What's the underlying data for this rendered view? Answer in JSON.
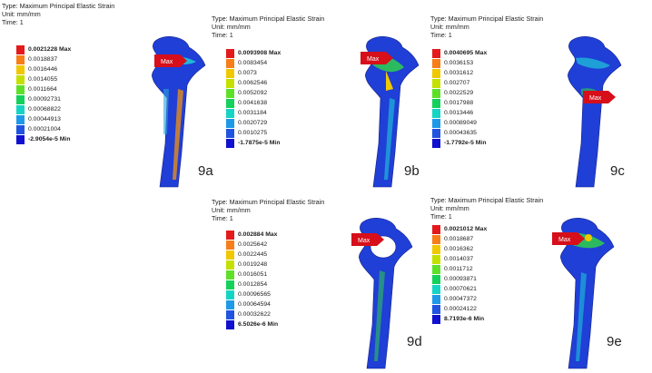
{
  "header": {
    "title": "Type: Maximum Principal Elastic Strain",
    "unit": "Unit: mm/mm",
    "time": "Time: 1"
  },
  "legend_colors": [
    "#e31a1c",
    "#f77e19",
    "#f0c800",
    "#c5e000",
    "#5ee028",
    "#13d15a",
    "#16d4c4",
    "#1e99e8",
    "#2054e0",
    "#1010d0"
  ],
  "panels": [
    {
      "id": "9a",
      "label": "9a",
      "max_tag": "Max",
      "values": [
        "0.0021228 Max",
        "0.0018837",
        "0.0016446",
        "0.0014055",
        "0.0011664",
        "0.00092731",
        "0.00068822",
        "0.00044913",
        "0.00021004",
        "-2.9054e-5 Min"
      ]
    },
    {
      "id": "9b",
      "label": "9b",
      "max_tag": "Max",
      "values": [
        "0.0093908 Max",
        "0.0083454",
        "0.0073",
        "0.0062546",
        "0.0052092",
        "0.0041638",
        "0.0031184",
        "0.0020729",
        "0.0010275",
        "-1.7875e-5 Min"
      ]
    },
    {
      "id": "9c",
      "label": "9c",
      "max_tag": "Max",
      "values": [
        "0.0040695 Max",
        "0.0036153",
        "0.0031612",
        "0.002707",
        "0.0022529",
        "0.0017988",
        "0.0013446",
        "0.00089049",
        "0.00043635",
        "-1.7792e-5 Min"
      ]
    },
    {
      "id": "9d",
      "label": "9d",
      "max_tag": "Max",
      "values": [
        "0.002884 Max",
        "0.0025642",
        "0.0022445",
        "0.0019248",
        "0.0016051",
        "0.0012854",
        "0.00096565",
        "0.00064594",
        "0.00032622",
        "6.5026e-6 Min"
      ]
    },
    {
      "id": "9e",
      "label": "9e",
      "max_tag": "Max",
      "values": [
        "0.0021012 Max",
        "0.0018687",
        "0.0016362",
        "0.0014037",
        "0.0011712",
        "0.00093871",
        "0.00070621",
        "0.00047372",
        "0.00024122",
        "8.7193e-6 Min"
      ]
    }
  ]
}
